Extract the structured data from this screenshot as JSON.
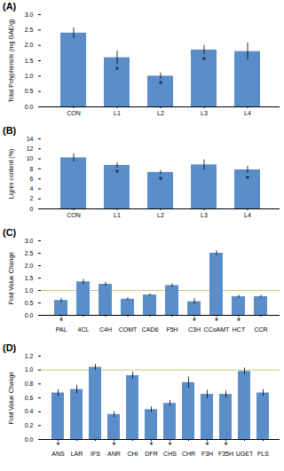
{
  "chart_data": [
    {
      "type": "bar",
      "title": "(A)",
      "categories": [
        "CON",
        "L1",
        "L2",
        "L3",
        "L4"
      ],
      "values": [
        2.4,
        1.6,
        1.0,
        1.85,
        1.8
      ],
      "errors": [
        0.18,
        0.22,
        0.1,
        0.15,
        0.28
      ],
      "annotations": [
        {
          "category": "L1",
          "text": "*"
        },
        {
          "category": "L2",
          "text": "*"
        },
        {
          "category": "L3",
          "text": "*"
        }
      ],
      "ylabel": "Total Polyphenols (mg GAE/g)",
      "color": "#5b8ec8",
      "ylim": [
        0,
        3.0
      ],
      "yticks": [
        {
          "value": 0,
          "label": "0.0"
        },
        0.5,
        {
          "value": 1.0,
          "label": "1.0"
        },
        1.5,
        {
          "value": 2.0,
          "label": "2.0"
        },
        2.5,
        {
          "value": 3.0,
          "label": "3.0"
        }
      ],
      "grid": false
    },
    {
      "type": "bar",
      "title": "(B)",
      "categories": [
        "CON",
        "L1",
        "L2",
        "L3",
        "L4"
      ],
      "values": [
        10.2,
        8.7,
        7.3,
        8.8,
        7.8
      ],
      "errors": [
        0.8,
        0.5,
        0.4,
        1.0,
        0.7
      ],
      "annotations": [
        {
          "category": "L1",
          "text": "*"
        },
        {
          "category": "L2",
          "text": "*"
        },
        {
          "category": "L4",
          "text": "*"
        }
      ],
      "ylabel": "Lignin content (%)",
      "color": "#5b8ec8",
      "ylim": [
        0,
        14
      ],
      "yticks": [
        0,
        2,
        4,
        6,
        8,
        10,
        12,
        14
      ],
      "grid": false
    },
    {
      "type": "bar",
      "title": "(C)",
      "categories": [
        "PAL",
        "4CL",
        "C4H",
        "COMT",
        "CAD6",
        "F5H",
        "C3H",
        "CCoAMT",
        "HCT",
        "CCR"
      ],
      "values": [
        0.6,
        1.35,
        1.25,
        0.65,
        0.82,
        1.2,
        0.55,
        2.5,
        0.75,
        0.75
      ],
      "errors": [
        0.08,
        0.1,
        0.08,
        0.06,
        0.05,
        0.07,
        0.12,
        0.1,
        0.06,
        0.06
      ],
      "annotations": [
        {
          "category": "PAL",
          "text": "*"
        },
        {
          "category": "C3H",
          "text": "*"
        },
        {
          "category": "CCoAMT",
          "text": "*"
        },
        {
          "category": "HCT",
          "text": "*"
        }
      ],
      "reference_lines": [
        {
          "value": 1.0,
          "color": "#c8c87a"
        }
      ],
      "ylabel": "Fold Value Change",
      "color": "#5b8ec8",
      "ylim": [
        0,
        3.0
      ],
      "yticks": [
        {
          "value": 0,
          "label": "0.0"
        },
        0.5,
        {
          "value": 1.0,
          "label": "1.0"
        },
        1.5,
        {
          "value": 2.0,
          "label": "2.0"
        },
        2.5,
        {
          "value": 3.0,
          "label": "3.0"
        }
      ],
      "grid": false
    },
    {
      "type": "bar",
      "title": "(D)",
      "categories": [
        "ANS",
        "LAR",
        "IFS",
        "ANR",
        "CHI",
        "DFR",
        "CHS",
        "CHR",
        "F3H",
        "F35H",
        "UGET",
        "FLS"
      ],
      "values": [
        0.67,
        0.72,
        1.04,
        0.36,
        0.92,
        0.43,
        0.52,
        0.82,
        0.65,
        0.65,
        0.98,
        0.67
      ],
      "errors": [
        0.05,
        0.06,
        0.04,
        0.04,
        0.05,
        0.04,
        0.04,
        0.08,
        0.06,
        0.05,
        0.05,
        0.05
      ],
      "annotations": [
        {
          "category": "ANS",
          "text": "*"
        },
        {
          "category": "ANR",
          "text": "*"
        },
        {
          "category": "DFR",
          "text": "*"
        },
        {
          "category": "CHS",
          "text": "*"
        },
        {
          "category": "F3H",
          "text": "*"
        },
        {
          "category": "F35H",
          "text": "*"
        }
      ],
      "reference_lines": [
        {
          "value": 1.0,
          "color": "#c8c87a"
        }
      ],
      "ylabel": "Fold Value Change",
      "color": "#5b8ec8",
      "ylim": [
        0,
        1.2
      ],
      "yticks": [
        {
          "value": 0,
          "label": "0.0"
        },
        0.2,
        0.4,
        0.6,
        0.8,
        {
          "value": 1.0,
          "label": "1.0"
        },
        1.2
      ],
      "grid": false
    }
  ]
}
